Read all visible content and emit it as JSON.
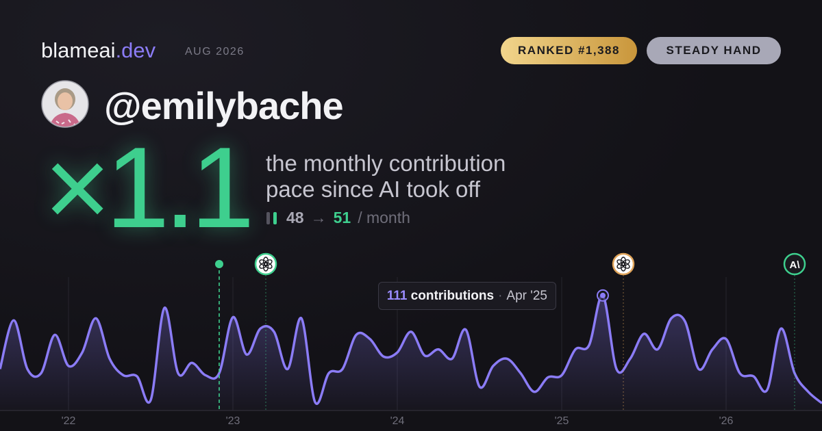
{
  "header": {
    "brand": "blameai",
    "brand_tld": ".dev",
    "date": "AUG 2026",
    "badges": [
      "RANKED #1,388",
      "STEADY HAND"
    ],
    "handle": "@emilybache"
  },
  "headline": {
    "multiplier": "×1.1",
    "description": [
      "the monthly contribution",
      "pace since AI took off"
    ],
    "before": 48,
    "arrow": "→",
    "after": 51,
    "unit": "/ month"
  },
  "chart_data": {
    "type": "area",
    "categories": [
      null,
      null,
      null,
      null,
      null,
      "'22",
      null,
      null,
      null,
      null,
      null,
      null,
      null,
      null,
      null,
      null,
      null,
      "'23",
      null,
      null,
      null,
      null,
      null,
      null,
      null,
      null,
      null,
      null,
      null,
      "'24",
      null,
      null,
      null,
      null,
      null,
      null,
      null,
      null,
      null,
      null,
      null,
      "'25",
      null,
      null,
      null,
      null,
      null,
      null,
      null,
      null,
      null,
      null,
      null,
      "'26",
      null,
      null,
      null,
      null,
      null,
      null,
      null
    ],
    "series": [
      {
        "name": "contributions",
        "color": "#8b7cf6",
        "values": [
          40,
          87,
          40,
          36,
          73,
          43,
          56,
          89,
          50,
          34,
          33,
          10,
          99,
          36,
          46,
          34,
          36,
          90,
          54,
          79,
          76,
          40,
          89,
          8,
          36,
          40,
          73,
          69,
          52,
          56,
          76,
          53,
          59,
          50,
          78,
          23,
          43,
          50,
          36,
          18,
          32,
          34,
          59,
          63,
          111,
          40,
          50,
          74,
          59,
          89,
          86,
          40,
          59,
          69,
          36,
          33,
          20,
          79,
          36,
          18,
          7
        ]
      }
    ],
    "ylim": [
      0,
      140
    ],
    "grid": true,
    "tooltip": {
      "label": "Apr '25",
      "separator": "·"
    },
    "events": [
      {
        "x": 16,
        "color": "#3ecf8e",
        "icon": "dot"
      },
      {
        "x": 19.4,
        "color": "#3ecf8e",
        "icon": "openai"
      },
      {
        "x": 45.5,
        "color": "#e0a45a",
        "icon": "openai"
      },
      {
        "x": 58,
        "color": "#3ecf8e",
        "icon": "anthropic",
        "label": "A\\"
      }
    ]
  }
}
